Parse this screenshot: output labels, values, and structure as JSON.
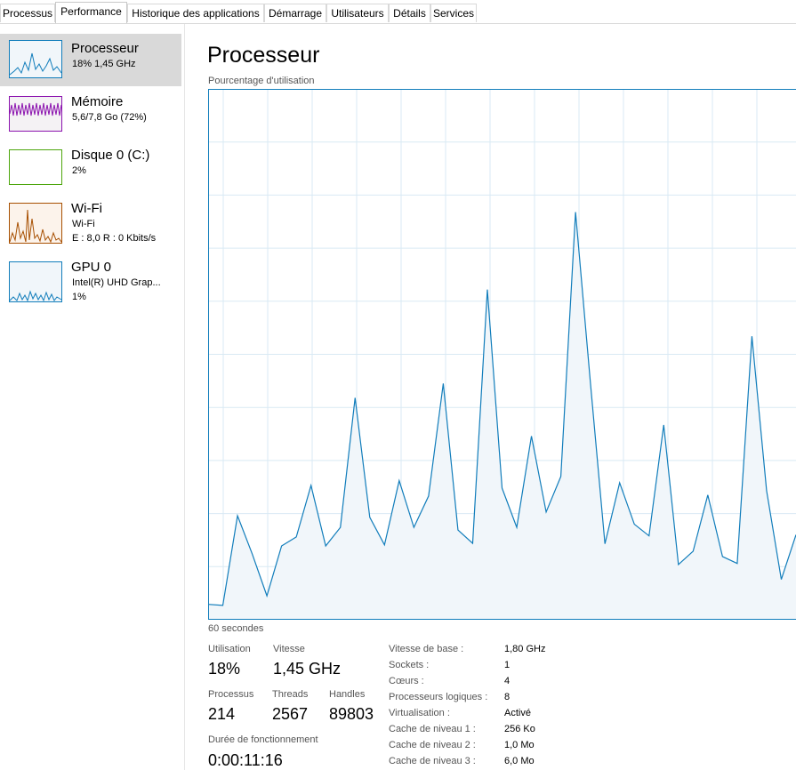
{
  "tabs": [
    "Processus",
    "Performance",
    "Historique des applications",
    "Démarrage",
    "Utilisateurs",
    "Détails",
    "Services"
  ],
  "sidebar": [
    {
      "name": "Processeur",
      "lines": [
        "18% 1,45 GHz"
      ]
    },
    {
      "name": "Mémoire",
      "lines": [
        "5,6/7,8 Go (72%)"
      ]
    },
    {
      "name": "Disque 0 (C:)",
      "lines": [
        "2%"
      ]
    },
    {
      "name": "Wi-Fi",
      "lines": [
        "Wi-Fi",
        "E : 8,0 R : 0 Kbits/s"
      ]
    },
    {
      "name": "GPU 0",
      "lines": [
        "Intel(R) UHD Grap...",
        "1%"
      ]
    }
  ],
  "header": {
    "title": "Processeur"
  },
  "chart_data": {
    "type": "area",
    "ylabel": "Pourcentage d'utilisation",
    "xlabel": "60 secondes",
    "color": "#117dbb",
    "values": [
      2.9,
      2.7,
      19.6,
      12.4,
      4.5,
      13.9,
      15.6,
      25.3,
      13.9,
      17.4,
      41.8,
      19.3,
      14.1,
      26.2,
      17.4,
      23.3,
      44.5,
      16.9,
      14.4,
      62.2,
      24.8,
      17.4,
      34.6,
      20.3,
      27.0,
      76.8,
      45,
      14.3,
      25.8,
      18.0,
      15.8,
      36.7,
      10.4,
      12.9,
      23.5,
      11.9,
      10.6,
      53.4,
      24.3,
      7.6,
      16
    ],
    "ylim": [
      0,
      100
    ]
  },
  "stats": [
    {
      "label": "Utilisation",
      "value": "18%"
    },
    {
      "label": "Vitesse",
      "value": "1,45 GHz"
    },
    {
      "label": "Processus",
      "value": "214"
    },
    {
      "label": "Threads",
      "value": "2567"
    },
    {
      "label": "Handles",
      "value": "89803"
    },
    {
      "label": "Durée de fonctionnement",
      "value": "0:00:11:16"
    }
  ],
  "details": [
    {
      "key": "Vitesse de base :",
      "value": "1,80 GHz"
    },
    {
      "key": "Sockets :",
      "value": "1"
    },
    {
      "key": "Cœurs :",
      "value": "4"
    },
    {
      "key": "Processeurs logiques :",
      "value": "8"
    },
    {
      "key": "Virtualisation :",
      "value": "Activé"
    },
    {
      "key": "Cache de niveau 1 :",
      "value": "256 Ko"
    },
    {
      "key": "Cache de niveau 2 :",
      "value": "1,0 Mo"
    },
    {
      "key": "Cache de niveau 3 :",
      "value": "6,0 Mo"
    }
  ]
}
